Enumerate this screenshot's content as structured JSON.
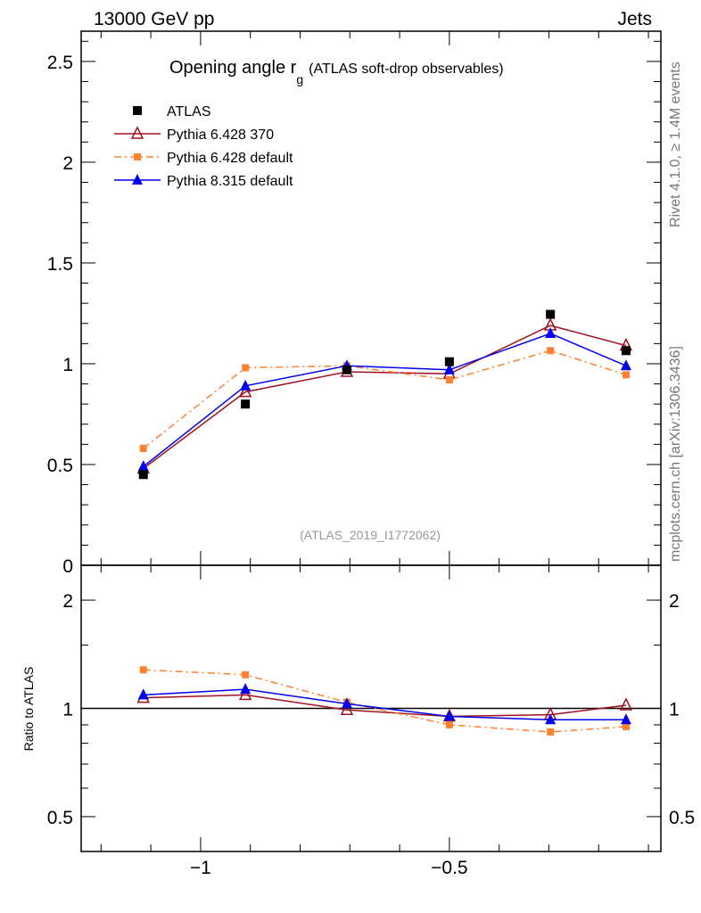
{
  "header": {
    "left": "13000 GeV pp",
    "right": "Jets"
  },
  "side_labels": {
    "rivet": "Rivet 4.1.0, ≥ 1.4M events",
    "mcplots": "mcplots.cern.ch [arXiv:1306.3436]"
  },
  "analysis_id": "(ATLAS_2019_I1772062)",
  "colors": {
    "atlas": "#000000",
    "p6_370": "#a01020",
    "p6_default": "#ff8030",
    "p8": "#0000ee"
  },
  "chart_data": [
    {
      "type": "line",
      "title": "Opening angle r",
      "title_sub": "g",
      "title_suffix": "(ATLAS soft-drop observables)",
      "xlabel": "",
      "ylabel": "",
      "xlim": [
        -1.24,
        -0.075
      ],
      "ylim": [
        0,
        2.65
      ],
      "yticks": [
        0,
        0.5,
        1,
        1.5,
        2,
        2.5
      ],
      "ytick_labels": [
        "0",
        "0.5",
        "1",
        "1.5",
        "2",
        "2.5"
      ],
      "legend_position": "top-left",
      "x": [
        -1.115,
        -0.91,
        -0.706,
        -0.5,
        -0.297,
        -0.145
      ],
      "series": [
        {
          "name": "ATLAS",
          "marker": "square",
          "values": [
            0.45,
            0.8,
            0.97,
            1.01,
            1.245,
            1.065
          ]
        },
        {
          "name": "Pythia 6.428 370",
          "marker": "open-triangle",
          "values": [
            0.48,
            0.86,
            0.96,
            0.95,
            1.19,
            1.09
          ]
        },
        {
          "name": "Pythia 6.428 default",
          "marker": "small-square",
          "values": [
            0.58,
            0.98,
            0.99,
            0.92,
            1.065,
            0.945
          ]
        },
        {
          "name": "Pythia 8.315 default",
          "marker": "triangle",
          "values": [
            0.49,
            0.89,
            0.99,
            0.97,
            1.15,
            0.99
          ]
        }
      ]
    },
    {
      "type": "line",
      "ylabel": "Ratio to ATLAS",
      "yscale": "log",
      "ylim": [
        0.4,
        2.5
      ],
      "yticks": [
        0.5,
        1,
        2
      ],
      "ytick_labels": [
        "0.5",
        "1",
        "2"
      ],
      "xticks": [
        -1,
        -0.5
      ],
      "xtick_labels": [
        "−1",
        "−0.5"
      ],
      "x": [
        -1.115,
        -0.91,
        -0.706,
        -0.5,
        -0.297,
        -0.145
      ],
      "series": [
        {
          "name": "Pythia 6.428 370",
          "values": [
            1.07,
            1.09,
            0.99,
            0.95,
            0.96,
            1.02
          ]
        },
        {
          "name": "Pythia 6.428 default",
          "values": [
            1.28,
            1.24,
            1.04,
            0.9,
            0.86,
            0.89
          ]
        },
        {
          "name": "Pythia 8.315 default",
          "values": [
            1.09,
            1.13,
            1.03,
            0.95,
            0.93,
            0.93
          ]
        }
      ]
    }
  ]
}
